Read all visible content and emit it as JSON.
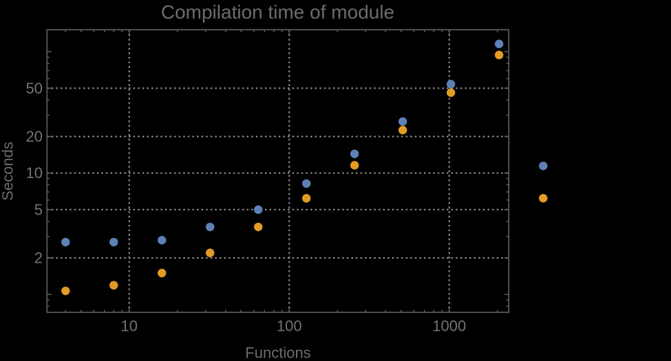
{
  "title": "Compilation time of module",
  "colors": {
    "background": "#000000",
    "frame": "#5f5f5f",
    "grid": "#949494",
    "title_text": "#6c6c6c",
    "tick_text": "#737373",
    "series1": "#5E81B5",
    "series2": "#E19C24"
  },
  "chart_data": {
    "type": "scatter",
    "title": "Compilation time of module",
    "xlabel": "Functions",
    "ylabel": "Seconds",
    "x_scale": "log",
    "y_scale": "log",
    "grid": "dotted",
    "xlim": [
      3.07,
      2330
    ],
    "ylim": [
      0.71,
      151
    ],
    "x": [
      4,
      8,
      16,
      32,
      64,
      128,
      256,
      512,
      1024,
      2048
    ],
    "series": [
      {
        "name": "series-1-blue",
        "color": "#5E81B5",
        "values": [
          2.7,
          2.7,
          2.8,
          3.6,
          5.0,
          8.2,
          14.4,
          26.6,
          54,
          116
        ]
      },
      {
        "name": "series-2-orange",
        "color": "#E19C24",
        "values": [
          1.07,
          1.19,
          1.5,
          2.2,
          3.6,
          6.2,
          11.6,
          22.6,
          46,
          94
        ]
      }
    ],
    "x_ticks_labeled": [
      10,
      100,
      1000
    ],
    "x_tick_labels": [
      "10",
      "100",
      "1000"
    ],
    "y_ticks_labeled": [
      2,
      5,
      10,
      20,
      50
    ],
    "y_tick_labels": [
      "2",
      "5",
      "10",
      "20",
      "50"
    ],
    "y_ticks_major_unlabeled": [
      1,
      100
    ],
    "legend_position": "right-outside",
    "legend": [
      {
        "marker": "circle",
        "color": "#5E81B5",
        "label": ""
      },
      {
        "marker": "circle",
        "color": "#E19C24",
        "label": ""
      }
    ]
  }
}
